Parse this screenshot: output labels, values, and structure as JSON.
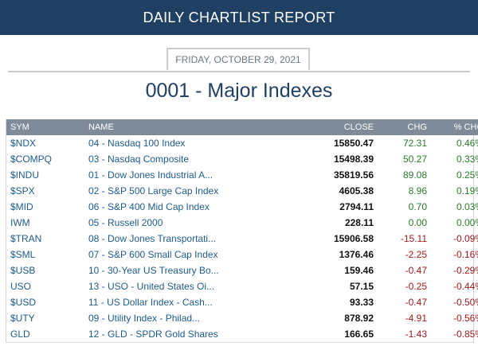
{
  "header": {
    "title": "DAILY CHARTLIST REPORT"
  },
  "report": {
    "date": "FRIDAY, OCTOBER 29, 2021",
    "title": "0001 - Major Indexes"
  },
  "table": {
    "headers": {
      "sym": "SYM",
      "name": "NAME",
      "close": "CLOSE",
      "chg": "CHG",
      "pct": "% CHG"
    },
    "rows": [
      {
        "sym": "$NDX",
        "name": "04 - Nasdaq 100 Index",
        "close": "15850.47",
        "chg": "72.31",
        "pct": "0.46%",
        "dir": "pos"
      },
      {
        "sym": "$COMPQ",
        "name": "03 - Nasdaq Composite",
        "close": "15498.39",
        "chg": "50.27",
        "pct": "0.33%",
        "dir": "pos"
      },
      {
        "sym": "$INDU",
        "name": "01 - Dow Jones Industrial A...",
        "close": "35819.56",
        "chg": "89.08",
        "pct": "0.25%",
        "dir": "pos"
      },
      {
        "sym": "$SPX",
        "name": "02 - S&P 500 Large Cap Index",
        "close": "4605.38",
        "chg": "8.96",
        "pct": "0.19%",
        "dir": "pos"
      },
      {
        "sym": "$MID",
        "name": "06 - S&P 400 Mid Cap Index",
        "close": "2794.11",
        "chg": "0.70",
        "pct": "0.03%",
        "dir": "pos"
      },
      {
        "sym": "IWM",
        "name": "05 - Russell 2000",
        "close": "228.11",
        "chg": "0.00",
        "pct": "0.00%",
        "dir": "zero"
      },
      {
        "sym": "$TRAN",
        "name": "08 - Dow Jones Transportati...",
        "close": "15906.58",
        "chg": "-15.11",
        "pct": "-0.09%",
        "dir": "neg"
      },
      {
        "sym": "$SML",
        "name": "07 - S&P 600 Small Cap Index",
        "close": "1376.46",
        "chg": "-2.25",
        "pct": "-0.16%",
        "dir": "neg"
      },
      {
        "sym": "$USB",
        "name": "10 - 30-Year US Treasury Bo...",
        "close": "159.46",
        "chg": "-0.47",
        "pct": "-0.29%",
        "dir": "neg"
      },
      {
        "sym": "USO",
        "name": "13 - USO - United States Oi...",
        "close": "57.15",
        "chg": "-0.25",
        "pct": "-0.44%",
        "dir": "neg"
      },
      {
        "sym": "$USD",
        "name": "11 - US Dollar Index - Cash...",
        "close": "93.33",
        "chg": "-0.47",
        "pct": "-0.50%",
        "dir": "neg"
      },
      {
        "sym": "$UTY",
        "name": "09 - Utility Index - Philad...",
        "close": "878.92",
        "chg": "-4.91",
        "pct": "-0.56%",
        "dir": "neg"
      },
      {
        "sym": "GLD",
        "name": "12 - GLD - SPDR Gold Shares",
        "close": "166.65",
        "chg": "-1.43",
        "pct": "-0.85%",
        "dir": "neg"
      }
    ]
  }
}
